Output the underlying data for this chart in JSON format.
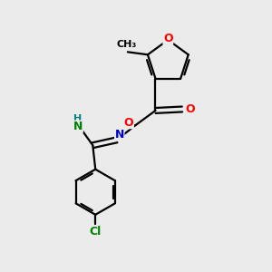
{
  "background_color": "#ebebeb",
  "atom_colors": {
    "O": "#ff0000",
    "N": "#0000cc",
    "N2": "#008000",
    "C": "#000000",
    "Cl": "#008000",
    "H": "#008080"
  },
  "bond_color": "#000000",
  "bond_width": 1.6,
  "figsize": [
    3.0,
    3.0
  ],
  "dpi": 100
}
